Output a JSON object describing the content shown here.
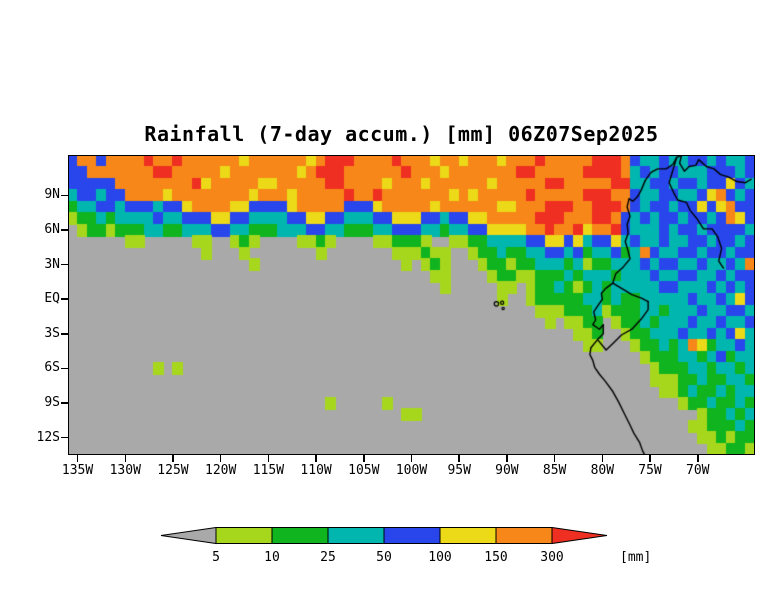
{
  "title": "Rainfall (7-day accum.) [mm] 06Z07Sep2025",
  "colorbar": {
    "labels": [
      "5",
      "10",
      "25",
      "50",
      "100",
      "150",
      "300"
    ],
    "unit_label": "[mm]",
    "colors": [
      "#a9a9a9",
      "#a6d71c",
      "#10b41e",
      "#00b6ae",
      "#2846ec",
      "#ecd917",
      "#f68718",
      "#ee2f21"
    ]
  },
  "chart_data": {
    "type": "heatmap",
    "title": "Rainfall (7-day accum.) [mm] 06Z07Sep2025",
    "units": "mm",
    "levels_mm": [
      5,
      10,
      25,
      50,
      100,
      150,
      300
    ],
    "level_meaning": "each grid character 0-7 maps to bins: 0:<5, 1:5-10, 2:10-25, 3:25-50, 4:50-100, 5:100-150, 6:150-300, 7:>300",
    "palette": [
      "#a9a9a9",
      "#a6d71c",
      "#10b41e",
      "#00b6ae",
      "#2846ec",
      "#ecd917",
      "#f68718",
      "#ee2f21"
    ],
    "lon_west_to_east": [
      136,
      64
    ],
    "lat_north_to_south": [
      12.5,
      -13.5
    ],
    "grid_cell_deg": 1,
    "lat_ticks": [
      {
        "label": "9N",
        "value": 9
      },
      {
        "label": "6N",
        "value": 6
      },
      {
        "label": "3N",
        "value": 3
      },
      {
        "label": "EQ",
        "value": 0
      },
      {
        "label": "3S",
        "value": -3
      },
      {
        "label": "6S",
        "value": -6
      },
      {
        "label": "9S",
        "value": -9
      },
      {
        "label": "12S",
        "value": -12
      }
    ],
    "lon_ticks": [
      {
        "label": "135W",
        "value": 135
      },
      {
        "label": "130W",
        "value": 130
      },
      {
        "label": "125W",
        "value": 125
      },
      {
        "label": "120W",
        "value": 120
      },
      {
        "label": "115W",
        "value": 115
      },
      {
        "label": "110W",
        "value": 110
      },
      {
        "label": "105W",
        "value": 105
      },
      {
        "label": "100W",
        "value": 100
      },
      {
        "label": "95W",
        "value": 95
      },
      {
        "label": "90W",
        "value": 90
      },
      {
        "label": "85W",
        "value": 85
      },
      {
        "label": "80W",
        "value": 80
      },
      {
        "label": "75W",
        "value": 75
      },
      {
        "label": "70W",
        "value": 70
      }
    ],
    "grid": [
      "466466667667666666566666656777666676665665666566676666677764334334434334",
      "446666666776666656666666567776666667666566666667766666777763434433344434",
      "444446666666675666665566666776666566656666665666667766666773344344344543",
      "344344666656666666656665666667667666666656566666766666777664334433456434",
      "233443444344566665544445666664445666665666666556667776677764344344545644",
      "122323333433444554433334455443334455544344556666677766677643434434434654",
      "012212223322333443322233344332223344433233445555667667566743334344344443",
      "000000110000011001210000112100001122210011223333445545344534334334434434",
      "000000000000001000100000001000000011121100122322334434233423643344344344",
      "000000000000000000010000000000000001012100012212233323122333434433433436",
      "000000000000000000000000000000000000001100001221122232333233343344334344",
      "000000000000000000000000000000000000000100000110122321232333334433343434",
      "000000000000000000000000000000000000000000000100122222332322333334334354",
      "000000000000000000000000000000000000000000000000011122231222332333433443",
      "000000000000000000000000000000000000000000000000001011220122323334334334",
      "000000000000000000000000000000000000000000000000000001120012233343343453",
      "000000000000000000000000000000000000000000000000000000110001223236523343",
      "000000000000000000000000000000000000000000000000000000000000122233234233",
      "000000000101000000000000000000000000000000000000000000000000012223323323",
      "000000000000000000000000000000000000000000000000000000000000011122322332",
      "000000000000000000000000000000000000000000000000000000000000001123223233",
      "000000000000000000000000000100000100000000000000000000000000000012232232",
      "000000000000000000000000000000000001100000000000000000000000000000122323",
      "000000000000000000000000000000000000000000000000000000000000000001122232",
      "000000000000000000000000000000000000000000000000000000000000000000112122",
      "000000000000000000000000000000000000000000000000000000000000000000011221"
    ]
  },
  "map": {
    "outlines": [
      [
        [
          77.2,
          8.7
        ],
        [
          77.4,
          8.0
        ],
        [
          77.1,
          7.2
        ],
        [
          77.4,
          6.5
        ],
        [
          77.3,
          5.7
        ],
        [
          77.6,
          5.0
        ],
        [
          77.3,
          4.2
        ],
        [
          77.1,
          3.5
        ],
        [
          77.8,
          2.8
        ],
        [
          78.6,
          2.2
        ],
        [
          78.9,
          1.4
        ],
        [
          79.7,
          0.9
        ],
        [
          80.1,
          0.5
        ],
        [
          80.0,
          0.0
        ],
        [
          80.5,
          -0.6
        ],
        [
          80.9,
          -1.1
        ],
        [
          80.7,
          -1.8
        ],
        [
          81.0,
          -2.2
        ],
        [
          80.3,
          -2.6
        ],
        [
          79.9,
          -2.2
        ],
        [
          79.9,
          -3.0
        ],
        [
          80.5,
          -3.5
        ],
        [
          81.2,
          -4.2
        ],
        [
          81.3,
          -4.8
        ],
        [
          81.0,
          -5.3
        ],
        [
          80.8,
          -5.9
        ],
        [
          80.3,
          -6.5
        ],
        [
          79.7,
          -7.1
        ],
        [
          78.9,
          -8.0
        ],
        [
          78.3,
          -8.9
        ],
        [
          77.7,
          -9.9
        ],
        [
          77.1,
          -10.9
        ],
        [
          76.7,
          -11.6
        ],
        [
          76.1,
          -12.4
        ],
        [
          75.8,
          -13.1
        ],
        [
          75.5,
          -13.6
        ]
      ],
      [
        [
          77.2,
          8.7
        ],
        [
          76.8,
          8.5
        ],
        [
          76.3,
          8.9
        ],
        [
          75.9,
          9.5
        ],
        [
          75.5,
          10.3
        ],
        [
          74.9,
          11.0
        ],
        [
          74.2,
          11.3
        ],
        [
          73.3,
          11.3
        ],
        [
          72.6,
          11.7
        ],
        [
          72.2,
          12.3
        ],
        [
          71.7,
          12.5
        ],
        [
          71.9,
          11.8
        ],
        [
          71.4,
          11.1
        ],
        [
          70.9,
          11.5
        ],
        [
          70.2,
          11.6
        ],
        [
          69.9,
          12.1
        ],
        [
          69.1,
          11.5
        ],
        [
          68.3,
          11.3
        ],
        [
          67.6,
          10.8
        ],
        [
          66.8,
          10.6
        ],
        [
          65.9,
          10.2
        ],
        [
          65.0,
          10.1
        ],
        [
          64.4,
          10.4
        ]
      ],
      [
        [
          72.2,
          12.3
        ],
        [
          72.6,
          11.2
        ],
        [
          73.0,
          10.1
        ],
        [
          72.5,
          9.2
        ],
        [
          72.1,
          8.6
        ],
        [
          71.2,
          8.4
        ],
        [
          70.8,
          7.7
        ],
        [
          70.1,
          7.0
        ],
        [
          69.4,
          6.1
        ],
        [
          68.5,
          6.1
        ],
        [
          67.9,
          5.4
        ],
        [
          67.5,
          4.4
        ],
        [
          67.8,
          3.3
        ],
        [
          67.3,
          2.7
        ]
      ],
      [
        [
          78.9,
          1.4
        ],
        [
          77.9,
          0.9
        ],
        [
          76.9,
          0.4
        ],
        [
          75.9,
          0.1
        ],
        [
          75.2,
          -0.2
        ]
      ],
      [
        [
          80.5,
          -3.5
        ],
        [
          79.6,
          -4.4
        ],
        [
          78.6,
          -3.6
        ],
        [
          78.0,
          -3.1
        ],
        [
          76.9,
          -2.6
        ],
        [
          75.9,
          -1.7
        ],
        [
          75.2,
          -0.9
        ],
        [
          75.2,
          -0.2
        ]
      ]
    ],
    "islands": [
      [
        91.1,
        -0.4,
        2.2
      ],
      [
        90.5,
        -0.3,
        1.6
      ],
      [
        90.4,
        -0.8,
        1.2
      ]
    ]
  }
}
